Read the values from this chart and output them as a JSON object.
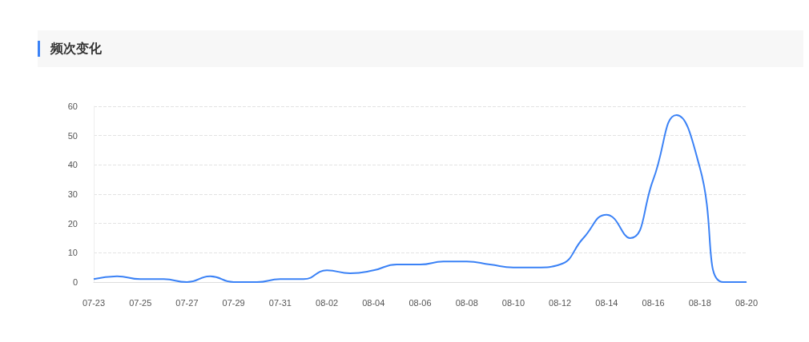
{
  "chart_data": {
    "type": "line",
    "title": "频次变化",
    "categories": [
      "07-23",
      null,
      "07-25",
      null,
      "07-27",
      null,
      "07-29",
      null,
      "07-31",
      null,
      "08-02",
      null,
      "08-04",
      null,
      "08-06",
      null,
      "08-08",
      null,
      "08-10",
      null,
      "08-12",
      null,
      "08-14",
      null,
      "08-16",
      null,
      "08-18",
      null,
      "08-20"
    ],
    "series": [
      {
        "color": "#3b82f6",
        "values": [
          1,
          2,
          1,
          1,
          0,
          2,
          0,
          0,
          1,
          1,
          4,
          3,
          4,
          6,
          6,
          7,
          7,
          6,
          5,
          5,
          6,
          15,
          23,
          15,
          35,
          57,
          39,
          0,
          0
        ]
      }
    ],
    "ylim": [
      0,
      60
    ],
    "yticks": [
      0,
      10,
      20,
      30,
      40,
      50,
      60
    ],
    "grid": "y",
    "marker": "none",
    "line_style": "solid"
  }
}
